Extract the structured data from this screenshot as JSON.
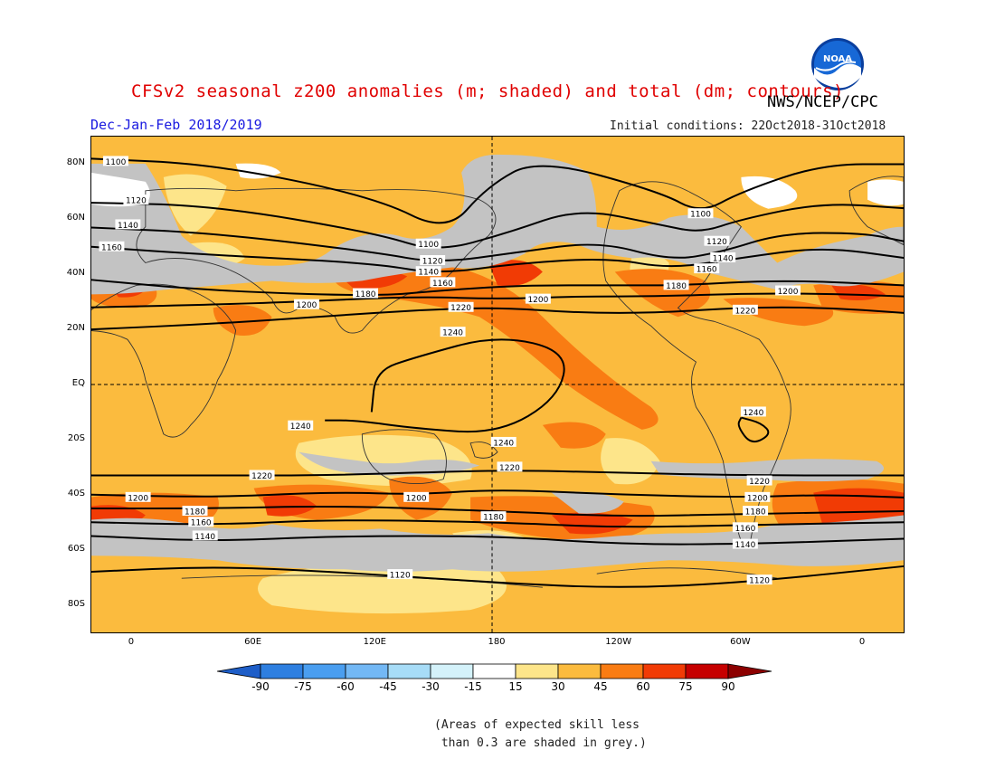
{
  "header": {
    "title": "CFSv2 seasonal z200 anomalies (m; shaded) and total (dm; contours)",
    "agency": "NWS/NCEP/CPC",
    "period": "Dec-Jan-Feb 2018/2019",
    "initial_conditions": "Initial conditions: 22Oct2018-31Oct2018",
    "logo_text": "NOAA"
  },
  "axes": {
    "y_labels": [
      {
        "label": "80N",
        "lat": 80
      },
      {
        "label": "60N",
        "lat": 60
      },
      {
        "label": "40N",
        "lat": 40
      },
      {
        "label": "20N",
        "lat": 20
      },
      {
        "label": "EQ",
        "lat": 0
      },
      {
        "label": "20S",
        "lat": -20
      },
      {
        "label": "40S",
        "lat": -40
      },
      {
        "label": "60S",
        "lat": -60
      },
      {
        "label": "80S",
        "lat": -80
      }
    ],
    "x_labels": [
      {
        "label": "0",
        "lon": 0
      },
      {
        "label": "60E",
        "lon": 60
      },
      {
        "label": "120E",
        "lon": 120
      },
      {
        "label": "180",
        "lon": 180
      },
      {
        "label": "120W",
        "lon": 240
      },
      {
        "label": "60W",
        "lon": 300
      },
      {
        "label": "0",
        "lon": 360
      }
    ]
  },
  "contours": [
    {
      "label": "1100",
      "pts": [
        [
          -20,
          82
        ],
        [
          40,
          80
        ],
        [
          120,
          68
        ],
        [
          155,
          55
        ],
        [
          175,
          72
        ],
        [
          200,
          82
        ],
        [
          260,
          70
        ],
        [
          280,
          62
        ],
        [
          300,
          70
        ],
        [
          340,
          80
        ],
        [
          380,
          80
        ]
      ]
    },
    {
      "label": "1120",
      "pts": [
        [
          -20,
          66
        ],
        [
          40,
          65
        ],
        [
          120,
          55
        ],
        [
          150,
          48
        ],
        [
          185,
          55
        ],
        [
          220,
          64
        ],
        [
          260,
          58
        ],
        [
          280,
          55
        ],
        [
          300,
          60
        ],
        [
          340,
          66
        ],
        [
          380,
          64
        ]
      ]
    },
    {
      "label": "1140",
      "pts": [
        [
          -20,
          57
        ],
        [
          40,
          55
        ],
        [
          120,
          48
        ],
        [
          150,
          44
        ],
        [
          190,
          48
        ],
        [
          230,
          52
        ],
        [
          265,
          45
        ],
        [
          290,
          48
        ],
        [
          320,
          55
        ],
        [
          360,
          55
        ],
        [
          380,
          52
        ]
      ]
    },
    {
      "label": "1160",
      "pts": [
        [
          -20,
          50
        ],
        [
          40,
          47
        ],
        [
          120,
          44
        ],
        [
          150,
          40
        ],
        [
          190,
          44
        ],
        [
          235,
          46
        ],
        [
          265,
          42
        ],
        [
          300,
          46
        ],
        [
          340,
          50
        ],
        [
          380,
          46
        ]
      ]
    },
    {
      "label": "1180",
      "pts": [
        [
          -20,
          38
        ],
        [
          40,
          34
        ],
        [
          120,
          32
        ],
        [
          150,
          34
        ],
        [
          190,
          36
        ],
        [
          240,
          36
        ],
        [
          270,
          36
        ],
        [
          320,
          38
        ],
        [
          380,
          36
        ]
      ]
    },
    {
      "label": "1200",
      "pts": [
        [
          -20,
          28
        ],
        [
          40,
          29
        ],
        [
          80,
          30
        ],
        [
          140,
          32
        ],
        [
          180,
          31
        ],
        [
          220,
          32
        ],
        [
          260,
          32
        ],
        [
          300,
          33
        ],
        [
          340,
          33
        ],
        [
          380,
          32
        ]
      ]
    },
    {
      "label": "1220",
      "pts": [
        [
          -20,
          20
        ],
        [
          40,
          22
        ],
        [
          100,
          25
        ],
        [
          140,
          27
        ],
        [
          180,
          28
        ],
        [
          220,
          26
        ],
        [
          260,
          26
        ],
        [
          300,
          28
        ],
        [
          340,
          28
        ],
        [
          380,
          26
        ]
      ]
    },
    {
      "label": "1240",
      "pts": [
        [
          118,
          -10
        ],
        [
          120,
          5
        ],
        [
          140,
          10
        ],
        [
          180,
          18
        ],
        [
          215,
          12
        ],
        [
          210,
          -5
        ],
        [
          180,
          -18
        ],
        [
          140,
          -16
        ],
        [
          110,
          -13
        ],
        [
          95,
          -13
        ]
      ]
    },
    {
      "label": "1240",
      "pts": [
        [
          300,
          -12
        ],
        [
          310,
          -14
        ],
        [
          315,
          -18
        ],
        [
          305,
          -22
        ],
        [
          298,
          -15
        ],
        [
          300,
          -12
        ]
      ]
    },
    {
      "label": "1220",
      "pts": [
        [
          -20,
          -33
        ],
        [
          40,
          -33
        ],
        [
          100,
          -33
        ],
        [
          180,
          -31
        ],
        [
          240,
          -32
        ],
        [
          300,
          -33
        ],
        [
          380,
          -33
        ]
      ]
    },
    {
      "label": "1200",
      "pts": [
        [
          -20,
          -40
        ],
        [
          40,
          -41
        ],
        [
          100,
          -39
        ],
        [
          140,
          -40
        ],
        [
          180,
          -38
        ],
        [
          240,
          -40
        ],
        [
          300,
          -41
        ],
        [
          340,
          -40
        ],
        [
          380,
          -41
        ]
      ]
    },
    {
      "label": "1180",
      "pts": [
        [
          -20,
          -45
        ],
        [
          40,
          -45
        ],
        [
          100,
          -44
        ],
        [
          180,
          -46
        ],
        [
          240,
          -48
        ],
        [
          300,
          -47
        ],
        [
          380,
          -46
        ]
      ]
    },
    {
      "label": "1160",
      "pts": [
        [
          -20,
          -50
        ],
        [
          40,
          -51
        ],
        [
          100,
          -49
        ],
        [
          180,
          -50
        ],
        [
          240,
          -52
        ],
        [
          300,
          -51
        ],
        [
          380,
          -50
        ]
      ]
    },
    {
      "label": "1140",
      "pts": [
        [
          -20,
          -55
        ],
        [
          40,
          -57
        ],
        [
          100,
          -55
        ],
        [
          180,
          -55
        ],
        [
          240,
          -58
        ],
        [
          300,
          -58
        ],
        [
          380,
          -56
        ]
      ]
    },
    {
      "label": "1120",
      "pts": [
        [
          -20,
          -68
        ],
        [
          40,
          -66
        ],
        [
          100,
          -68
        ],
        [
          180,
          -72
        ],
        [
          240,
          -74
        ],
        [
          300,
          -72
        ],
        [
          380,
          -66
        ]
      ]
    }
  ],
  "contour_labels": [
    {
      "text": "1100",
      "lon": -8,
      "lat": 81
    },
    {
      "text": "1120",
      "lon": 2,
      "lat": 67
    },
    {
      "text": "1140",
      "lon": -2,
      "lat": 58
    },
    {
      "text": "1160",
      "lon": -10,
      "lat": 50
    },
    {
      "text": "1100",
      "lon": 146,
      "lat": 51
    },
    {
      "text": "1120",
      "lon": 148,
      "lat": 45
    },
    {
      "text": "1140",
      "lon": 146,
      "lat": 41
    },
    {
      "text": "1160",
      "lon": 153,
      "lat": 37
    },
    {
      "text": "1180",
      "lon": 115,
      "lat": 33
    },
    {
      "text": "1200",
      "lon": 86,
      "lat": 29
    },
    {
      "text": "1200",
      "lon": 200,
      "lat": 31
    },
    {
      "text": "1220",
      "lon": 162,
      "lat": 28
    },
    {
      "text": "1240",
      "lon": 158,
      "lat": 19
    },
    {
      "text": "1100",
      "lon": 280,
      "lat": 62
    },
    {
      "text": "1120",
      "lon": 288,
      "lat": 52
    },
    {
      "text": "1140",
      "lon": 291,
      "lat": 46
    },
    {
      "text": "1160",
      "lon": 283,
      "lat": 42
    },
    {
      "text": "1180",
      "lon": 268,
      "lat": 36
    },
    {
      "text": "1200",
      "lon": 323,
      "lat": 34
    },
    {
      "text": "1220",
      "lon": 302,
      "lat": 27
    },
    {
      "text": "1240",
      "lon": 306,
      "lat": -10
    },
    {
      "text": "1240",
      "lon": 83,
      "lat": -15
    },
    {
      "text": "1240",
      "lon": 183,
      "lat": -21
    },
    {
      "text": "1220",
      "lon": 64,
      "lat": -33
    },
    {
      "text": "1220",
      "lon": 186,
      "lat": -30
    },
    {
      "text": "1220",
      "lon": 309,
      "lat": -35
    },
    {
      "text": "1200",
      "lon": 3,
      "lat": -41
    },
    {
      "text": "1200",
      "lon": 140,
      "lat": -41
    },
    {
      "text": "1200",
      "lon": 308,
      "lat": -41
    },
    {
      "text": "1180",
      "lon": 31,
      "lat": -46
    },
    {
      "text": "1180",
      "lon": 178,
      "lat": -48
    },
    {
      "text": "1180",
      "lon": 307,
      "lat": -46
    },
    {
      "text": "1160",
      "lon": 34,
      "lat": -50
    },
    {
      "text": "1160",
      "lon": 302,
      "lat": -52
    },
    {
      "text": "1140",
      "lon": 36,
      "lat": -55
    },
    {
      "text": "1140",
      "lon": 302,
      "lat": -58
    },
    {
      "text": "1120",
      "lon": 132,
      "lat": -69
    },
    {
      "text": "1120",
      "lon": 309,
      "lat": -71
    }
  ],
  "colorbar": {
    "levels": [
      "-90",
      "-75",
      "-60",
      "-45",
      "-30",
      "-15",
      "15",
      "30",
      "45",
      "60",
      "75",
      "90"
    ],
    "colors": [
      "#1e5ec8",
      "#2e7fe0",
      "#4a9ef0",
      "#73b8f5",
      "#a7dcf7",
      "#d4f2fa",
      "#ffffff",
      "#fde58a",
      "#fbbb3e",
      "#f97c13",
      "#f13b05",
      "#c60000",
      "#8c0000"
    ]
  },
  "note": "(Areas of expected skill less\n than 0.3 are shaded in grey.)"
}
